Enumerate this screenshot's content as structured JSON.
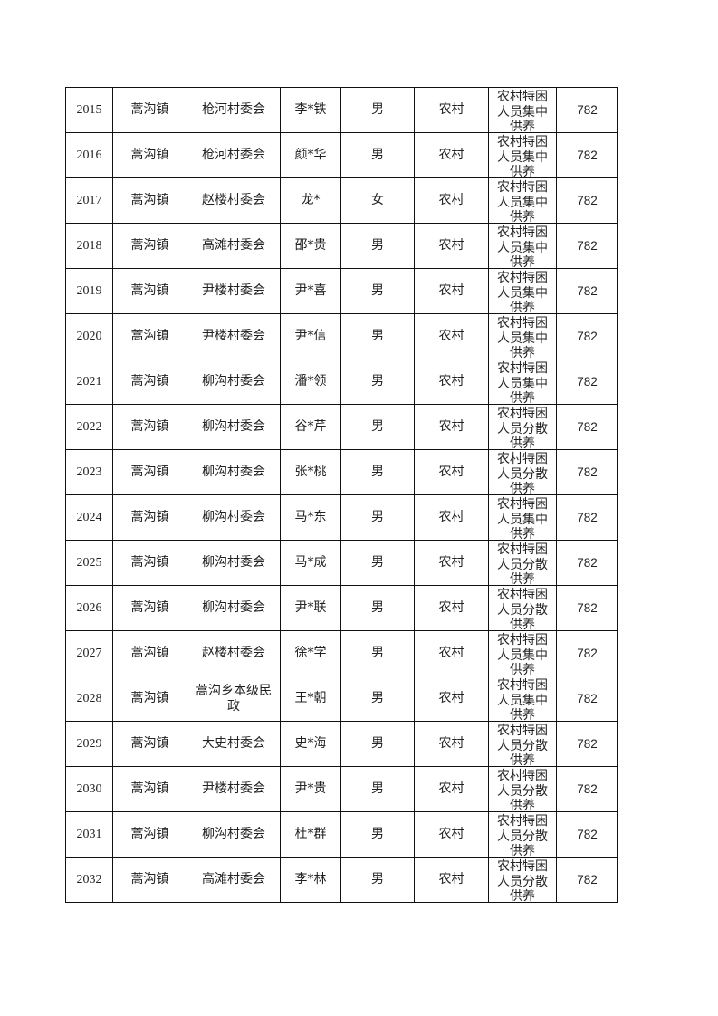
{
  "table": {
    "rows": [
      {
        "no": "2015",
        "town": "蒿沟镇",
        "village": "枪河村委会",
        "name": "李*铁",
        "gender": "男",
        "area": "农村",
        "type": "农村特困人员集中供养",
        "amount": "782"
      },
      {
        "no": "2016",
        "town": "蒿沟镇",
        "village": "枪河村委会",
        "name": "颜*华",
        "gender": "男",
        "area": "农村",
        "type": "农村特困人员集中供养",
        "amount": "782"
      },
      {
        "no": "2017",
        "town": "蒿沟镇",
        "village": "赵楼村委会",
        "name": "龙*",
        "gender": "女",
        "area": "农村",
        "type": "农村特困人员集中供养",
        "amount": "782"
      },
      {
        "no": "2018",
        "town": "蒿沟镇",
        "village": "高滩村委会",
        "name": "邵*贵",
        "gender": "男",
        "area": "农村",
        "type": "农村特困人员集中供养",
        "amount": "782"
      },
      {
        "no": "2019",
        "town": "蒿沟镇",
        "village": "尹楼村委会",
        "name": "尹*喜",
        "gender": "男",
        "area": "农村",
        "type": "农村特困人员集中供养",
        "amount": "782"
      },
      {
        "no": "2020",
        "town": "蒿沟镇",
        "village": "尹楼村委会",
        "name": "尹*信",
        "gender": "男",
        "area": "农村",
        "type": "农村特困人员集中供养",
        "amount": "782"
      },
      {
        "no": "2021",
        "town": "蒿沟镇",
        "village": "柳沟村委会",
        "name": "潘*领",
        "gender": "男",
        "area": "农村",
        "type": "农村特困人员集中供养",
        "amount": "782"
      },
      {
        "no": "2022",
        "town": "蒿沟镇",
        "village": "柳沟村委会",
        "name": "谷*芹",
        "gender": "男",
        "area": "农村",
        "type": "农村特困人员分散供养",
        "amount": "782"
      },
      {
        "no": "2023",
        "town": "蒿沟镇",
        "village": "柳沟村委会",
        "name": "张*桃",
        "gender": "男",
        "area": "农村",
        "type": "农村特困人员分散供养",
        "amount": "782"
      },
      {
        "no": "2024",
        "town": "蒿沟镇",
        "village": "柳沟村委会",
        "name": "马*东",
        "gender": "男",
        "area": "农村",
        "type": "农村特困人员集中供养",
        "amount": "782"
      },
      {
        "no": "2025",
        "town": "蒿沟镇",
        "village": "柳沟村委会",
        "name": "马*成",
        "gender": "男",
        "area": "农村",
        "type": "农村特困人员分散供养",
        "amount": "782"
      },
      {
        "no": "2026",
        "town": "蒿沟镇",
        "village": "柳沟村委会",
        "name": "尹*联",
        "gender": "男",
        "area": "农村",
        "type": "农村特困人员分散供养",
        "amount": "782"
      },
      {
        "no": "2027",
        "town": "蒿沟镇",
        "village": "赵楼村委会",
        "name": "徐*学",
        "gender": "男",
        "area": "农村",
        "type": "农村特困人员集中供养",
        "amount": "782"
      },
      {
        "no": "2028",
        "town": "蒿沟镇",
        "village": "蒿沟乡本级民政",
        "name": "王*朝",
        "gender": "男",
        "area": "农村",
        "type": "农村特困人员集中供养",
        "amount": "782"
      },
      {
        "no": "2029",
        "town": "蒿沟镇",
        "village": "大史村委会",
        "name": "史*海",
        "gender": "男",
        "area": "农村",
        "type": "农村特困人员分散供养",
        "amount": "782"
      },
      {
        "no": "2030",
        "town": "蒿沟镇",
        "village": "尹楼村委会",
        "name": "尹*贵",
        "gender": "男",
        "area": "农村",
        "type": "农村特困人员分散供养",
        "amount": "782"
      },
      {
        "no": "2031",
        "town": "蒿沟镇",
        "village": "柳沟村委会",
        "name": "杜*群",
        "gender": "男",
        "area": "农村",
        "type": "农村特困人员分散供养",
        "amount": "782"
      },
      {
        "no": "2032",
        "town": "蒿沟镇",
        "village": "高滩村委会",
        "name": "李*林",
        "gender": "男",
        "area": "农村",
        "type": "农村特困人员分散供养",
        "amount": "782"
      }
    ]
  }
}
